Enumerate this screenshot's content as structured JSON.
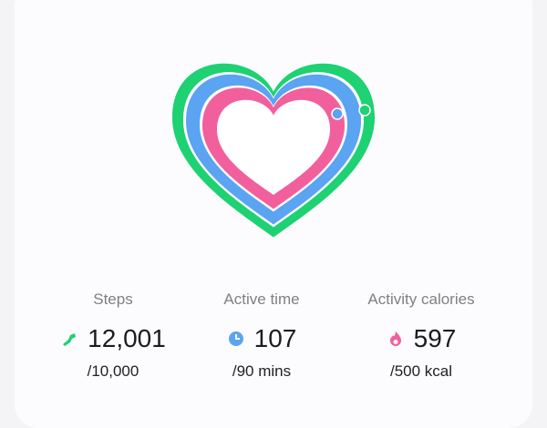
{
  "stats": [
    {
      "label": "Steps",
      "value": "12,001",
      "goal": "/10,000"
    },
    {
      "label": "Active time",
      "value": "107",
      "goal": "/90 mins"
    },
    {
      "label": "Activity calories",
      "value": "597",
      "goal": "/500 kcal"
    }
  ]
}
